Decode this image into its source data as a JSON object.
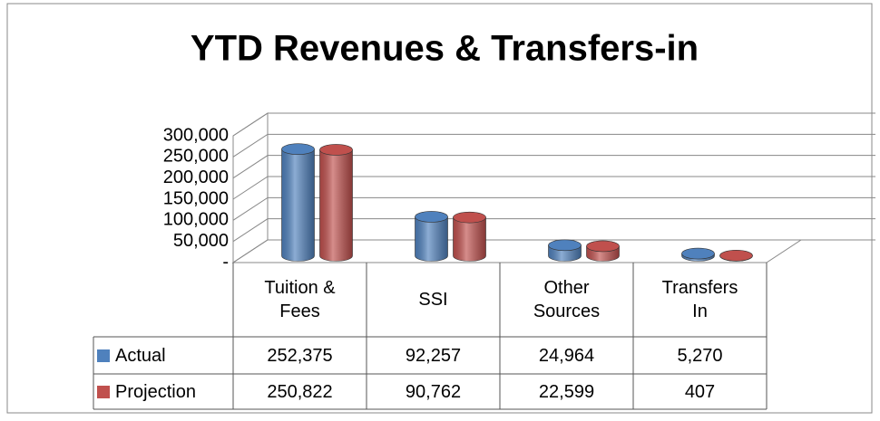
{
  "chart_data": {
    "type": "bar3d",
    "title": "YTD Revenues & Transfers-in",
    "categories": [
      "Tuition & Fees",
      "SSI",
      "Other Sources",
      "Transfers In"
    ],
    "series": [
      {
        "name": "Actual",
        "color": "#4f81bd",
        "values": [
          252375,
          92257,
          24964,
          5270
        ],
        "value_labels": [
          "252,375",
          "92,257",
          "24,964",
          "5,270"
        ]
      },
      {
        "name": "Projection",
        "color": "#c0504d",
        "values": [
          250822,
          90762,
          22599,
          407
        ],
        "value_labels": [
          "250,822",
          "90,762",
          "22,599",
          "407"
        ]
      }
    ],
    "ylim": [
      0,
      300000
    ],
    "yticks": [
      {
        "value": 0,
        "label": "-"
      },
      {
        "value": 50000,
        "label": "50,000"
      },
      {
        "value": 100000,
        "label": "100,000"
      },
      {
        "value": 150000,
        "label": "150,000"
      },
      {
        "value": 200000,
        "label": "200,000"
      },
      {
        "value": 250000,
        "label": "250,000"
      },
      {
        "value": 300000,
        "label": "300,000"
      }
    ],
    "grid": true
  }
}
